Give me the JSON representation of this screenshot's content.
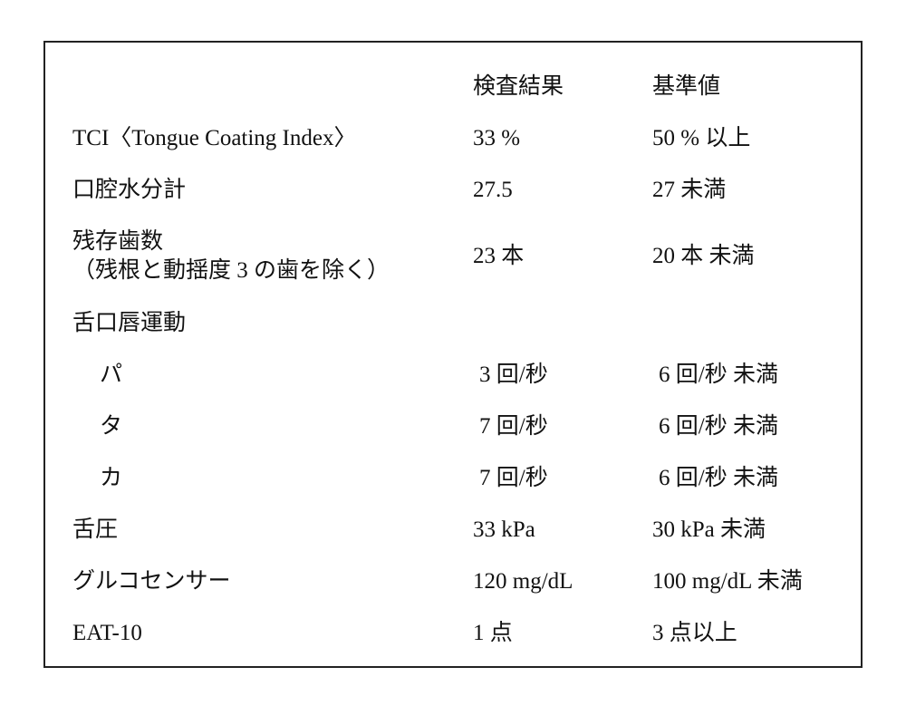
{
  "table": {
    "header": {
      "result": "検査結果",
      "reference": "基準値"
    },
    "rows": [
      {
        "label": "TCI〈Tongue Coating Index〉",
        "result": "33 %",
        "reference": "50 % 以上"
      },
      {
        "label": "口腔水分計",
        "result": "27.5",
        "reference": "27 未満"
      },
      {
        "label": "残存歯数",
        "note": "（残根と動揺度 3 の歯を除く）",
        "result": "23 本",
        "reference": "20 本 未満"
      },
      {
        "label": "舌口唇運動",
        "items": [
          {
            "label": "パ",
            "result": "3 回/秒",
            "reference": "6 回/秒 未満"
          },
          {
            "label": "タ",
            "result": "7 回/秒",
            "reference": "6 回/秒 未満"
          },
          {
            "label": "カ",
            "result": "7 回/秒",
            "reference": "6 回/秒 未満"
          }
        ]
      },
      {
        "label": "舌圧",
        "result": "33 kPa",
        "reference": "30 kPa 未満"
      },
      {
        "label": "グルコセンサー",
        "result": "120 mg/dL",
        "reference": "100 mg/dL 未満"
      },
      {
        "label": "EAT-10",
        "result": "1 点",
        "reference": "3 点以上"
      }
    ]
  }
}
